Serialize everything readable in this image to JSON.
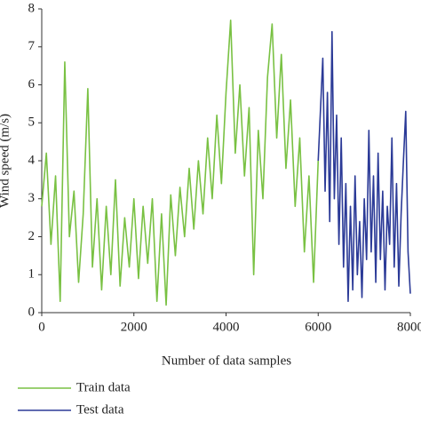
{
  "chart_data": {
    "type": "line",
    "x_label": "Number of data samples",
    "y_label": "Wind speed (m/s)",
    "xlim": [
      0,
      8000
    ],
    "xticks": [
      0,
      2000,
      4000,
      6000,
      8000
    ],
    "ylim": [
      0,
      8
    ],
    "yticks": [
      0,
      1,
      2,
      3,
      4,
      5,
      6,
      7,
      8
    ],
    "series": [
      {
        "name": "Train data",
        "color": "#79c143",
        "x": [
          0,
          100,
          200,
          300,
          400,
          500,
          600,
          700,
          800,
          900,
          1000,
          1100,
          1200,
          1300,
          1400,
          1500,
          1600,
          1700,
          1800,
          1900,
          2000,
          2100,
          2200,
          2300,
          2400,
          2500,
          2600,
          2700,
          2800,
          2900,
          3000,
          3100,
          3200,
          3300,
          3400,
          3500,
          3600,
          3700,
          3800,
          3900,
          4000,
          4100,
          4200,
          4300,
          4400,
          4500,
          4600,
          4700,
          4800,
          4900,
          5000,
          5100,
          5200,
          5300,
          5400,
          5500,
          5600,
          5700,
          5800,
          5900,
          6000
        ],
        "values": [
          2.8,
          4.2,
          1.8,
          3.6,
          0.3,
          6.6,
          2.0,
          3.2,
          0.8,
          2.6,
          5.9,
          1.2,
          3.0,
          0.6,
          2.8,
          1.0,
          3.5,
          0.7,
          2.5,
          1.2,
          3.0,
          0.9,
          2.8,
          1.3,
          3.0,
          0.3,
          2.6,
          0.2,
          3.1,
          1.5,
          3.3,
          2.0,
          3.8,
          2.2,
          4.0,
          2.6,
          4.6,
          3.0,
          5.2,
          3.4,
          5.8,
          7.7,
          4.2,
          6.0,
          3.6,
          5.4,
          1.0,
          4.8,
          3.0,
          6.2,
          7.6,
          4.6,
          6.8,
          3.8,
          5.6,
          2.8,
          4.6,
          1.6,
          3.6,
          0.8,
          4.0
        ]
      },
      {
        "name": "Test data",
        "color": "#2b3a97",
        "x": [
          6000,
          6100,
          6150,
          6200,
          6250,
          6300,
          6350,
          6400,
          6450,
          6500,
          6550,
          6600,
          6650,
          6700,
          6750,
          6800,
          6850,
          6900,
          6950,
          7000,
          7050,
          7100,
          7150,
          7200,
          7250,
          7300,
          7350,
          7400,
          7450,
          7500,
          7550,
          7600,
          7650,
          7700,
          7750,
          7800,
          7850,
          7900,
          7950,
          8000
        ],
        "values": [
          4.0,
          6.7,
          3.2,
          5.8,
          2.4,
          7.4,
          3.0,
          5.2,
          1.8,
          4.6,
          1.2,
          3.4,
          0.3,
          2.8,
          0.6,
          3.6,
          1.0,
          2.4,
          0.4,
          3.0,
          1.4,
          4.8,
          1.6,
          3.6,
          0.8,
          4.2,
          1.4,
          3.2,
          0.6,
          2.8,
          1.8,
          4.6,
          1.2,
          3.4,
          0.7,
          2.6,
          4.0,
          5.3,
          1.6,
          0.5
        ]
      }
    ]
  }
}
